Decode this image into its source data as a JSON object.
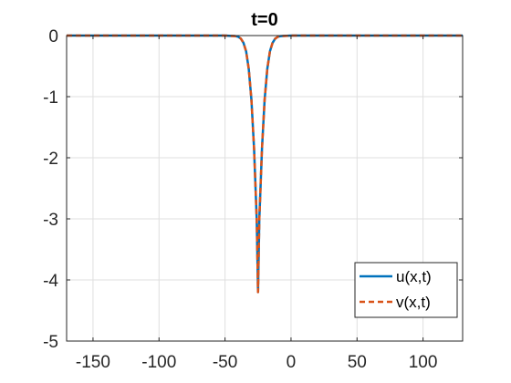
{
  "chart_data": {
    "type": "line",
    "title": "t=0",
    "xlabel": "",
    "ylabel": "",
    "xlim": [
      -170,
      130
    ],
    "ylim": [
      -5,
      0
    ],
    "xticks": [
      -150,
      -100,
      -50,
      0,
      50,
      100
    ],
    "xtick_labels": [
      "-150",
      "-100",
      "-50",
      "0",
      "50",
      "100"
    ],
    "yticks": [
      0,
      -1,
      -2,
      -3,
      -4,
      -5
    ],
    "ytick_labels": [
      "0",
      "-1",
      "-2",
      "-3",
      "-4",
      "-5"
    ],
    "grid": true,
    "legend_position": "bottom-right",
    "series": [
      {
        "name": "u(x,t)",
        "color": "#0072BD",
        "style": "solid",
        "x": [
          -170,
          -50,
          -42,
          -40,
          -38,
          -36,
          -34,
          -32,
          -30,
          -28,
          -26,
          -25,
          -24,
          -22,
          -20,
          -18,
          -16,
          -14,
          -12,
          -10,
          -8,
          0,
          130
        ],
        "y": [
          0,
          0,
          -0.01,
          -0.02,
          -0.05,
          -0.12,
          -0.26,
          -0.55,
          -1.05,
          -1.85,
          -3.0,
          -4.2,
          -3.0,
          -1.85,
          -1.05,
          -0.55,
          -0.26,
          -0.12,
          -0.05,
          -0.02,
          -0.01,
          0,
          0
        ]
      },
      {
        "name": "v(x,t)",
        "color": "#D95319",
        "style": "dashed",
        "x": [
          -170,
          -50,
          -42,
          -40,
          -38,
          -36,
          -34,
          -32,
          -30,
          -28,
          -26,
          -25,
          -24,
          -22,
          -20,
          -18,
          -16,
          -14,
          -12,
          -10,
          -8,
          0,
          130
        ],
        "y": [
          0,
          0,
          -0.01,
          -0.02,
          -0.05,
          -0.12,
          -0.26,
          -0.55,
          -1.05,
          -1.85,
          -3.0,
          -4.2,
          -3.0,
          -1.85,
          -1.05,
          -0.55,
          -0.26,
          -0.12,
          -0.05,
          -0.02,
          -0.01,
          0,
          0
        ]
      }
    ]
  }
}
